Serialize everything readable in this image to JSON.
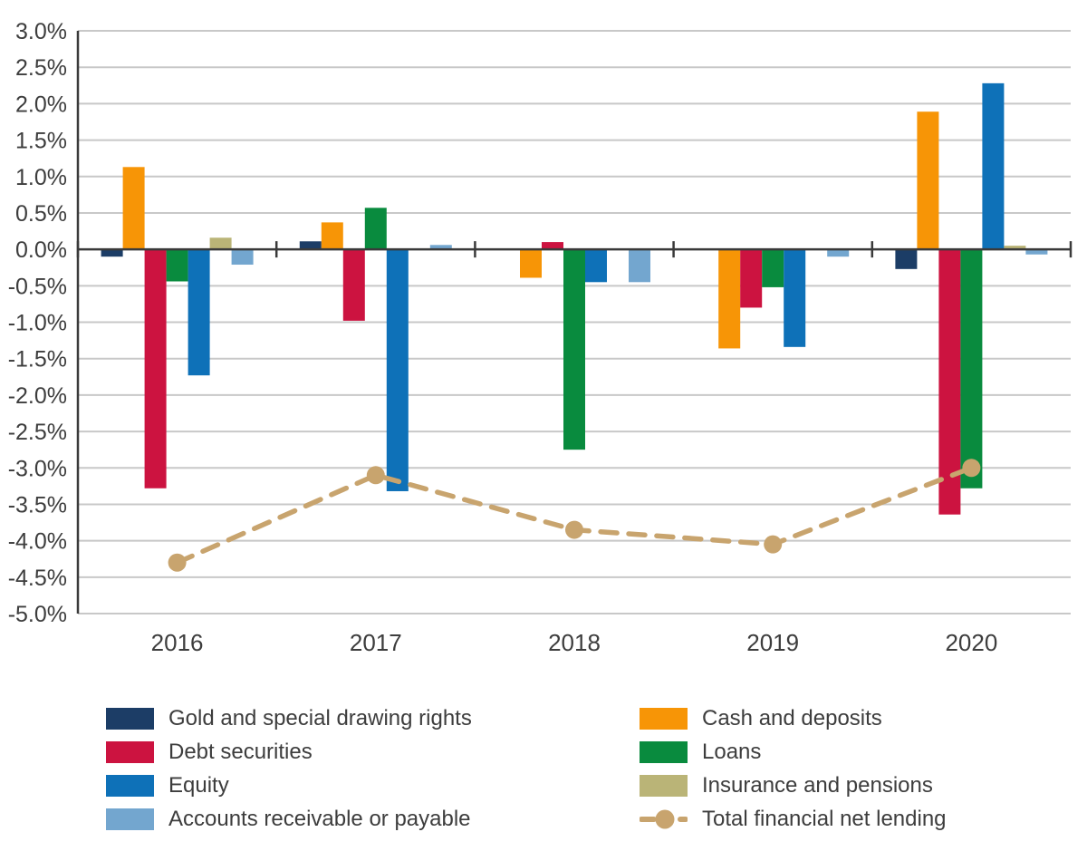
{
  "chart_data": {
    "type": "bar",
    "title": "",
    "xlabel": "",
    "ylabel": "",
    "categories": [
      "2016",
      "2017",
      "2018",
      "2019",
      "2020"
    ],
    "series": [
      {
        "name": "Gold and special drawing rights",
        "color": "#1C3D66",
        "values": [
          -0.1,
          0.11,
          0,
          0,
          -0.27
        ]
      },
      {
        "name": "Cash and deposits",
        "color": "#F79506",
        "values": [
          1.13,
          0.37,
          -0.39,
          -1.36,
          1.89
        ]
      },
      {
        "name": "Debt securities",
        "color": "#CC1340",
        "values": [
          -3.28,
          -0.98,
          0.1,
          -0.8,
          -3.64
        ]
      },
      {
        "name": "Loans",
        "color": "#098B3E",
        "values": [
          -0.44,
          0.57,
          -2.75,
          -0.52,
          -3.28
        ]
      },
      {
        "name": "Equity",
        "color": "#0E71B8",
        "values": [
          -1.73,
          -3.32,
          -0.45,
          -1.34,
          2.28
        ]
      },
      {
        "name": "Insurance and pensions",
        "color": "#BAB477",
        "values": [
          0.16,
          0,
          0,
          0,
          0.05
        ]
      },
      {
        "name": "Accounts receivable or payable",
        "color": "#73A6CF",
        "values": [
          -0.21,
          0.06,
          -0.45,
          -0.1,
          -0.07
        ]
      }
    ],
    "line_series": {
      "name": "Total financial net lending",
      "color": "#C8A46E",
      "values": [
        -4.3,
        -3.1,
        -3.85,
        -4.05,
        -3.0
      ]
    },
    "y_axis": {
      "min": -5.0,
      "max": 3.0,
      "step": 0.5,
      "tick_format": "percent_one_decimal",
      "tick_labels": [
        "3.0%",
        "2.5%",
        "2.0%",
        "1.5%",
        "1.0%",
        "0.5%",
        "0.0%",
        "-0.5%",
        "-1.0%",
        "-1.5%",
        "-2.0%",
        "-2.5%",
        "-3.0%",
        "-3.5%",
        "-4.0%",
        "-4.5%",
        "-5.0%"
      ]
    },
    "grid": true,
    "legend_position": "bottom",
    "legend_columns": {
      "left": [
        "Gold and special drawing rights",
        "Debt securities",
        "Equity",
        "Accounts receivable or payable"
      ],
      "right": [
        "Cash and deposits",
        "Loans",
        "Insurance and pensions",
        "Total financial net lending"
      ]
    },
    "style_colors": {
      "grid_line": "#C8C8C8",
      "zero_axis": "#3A3A3A",
      "text": "#3D3D3D"
    }
  }
}
